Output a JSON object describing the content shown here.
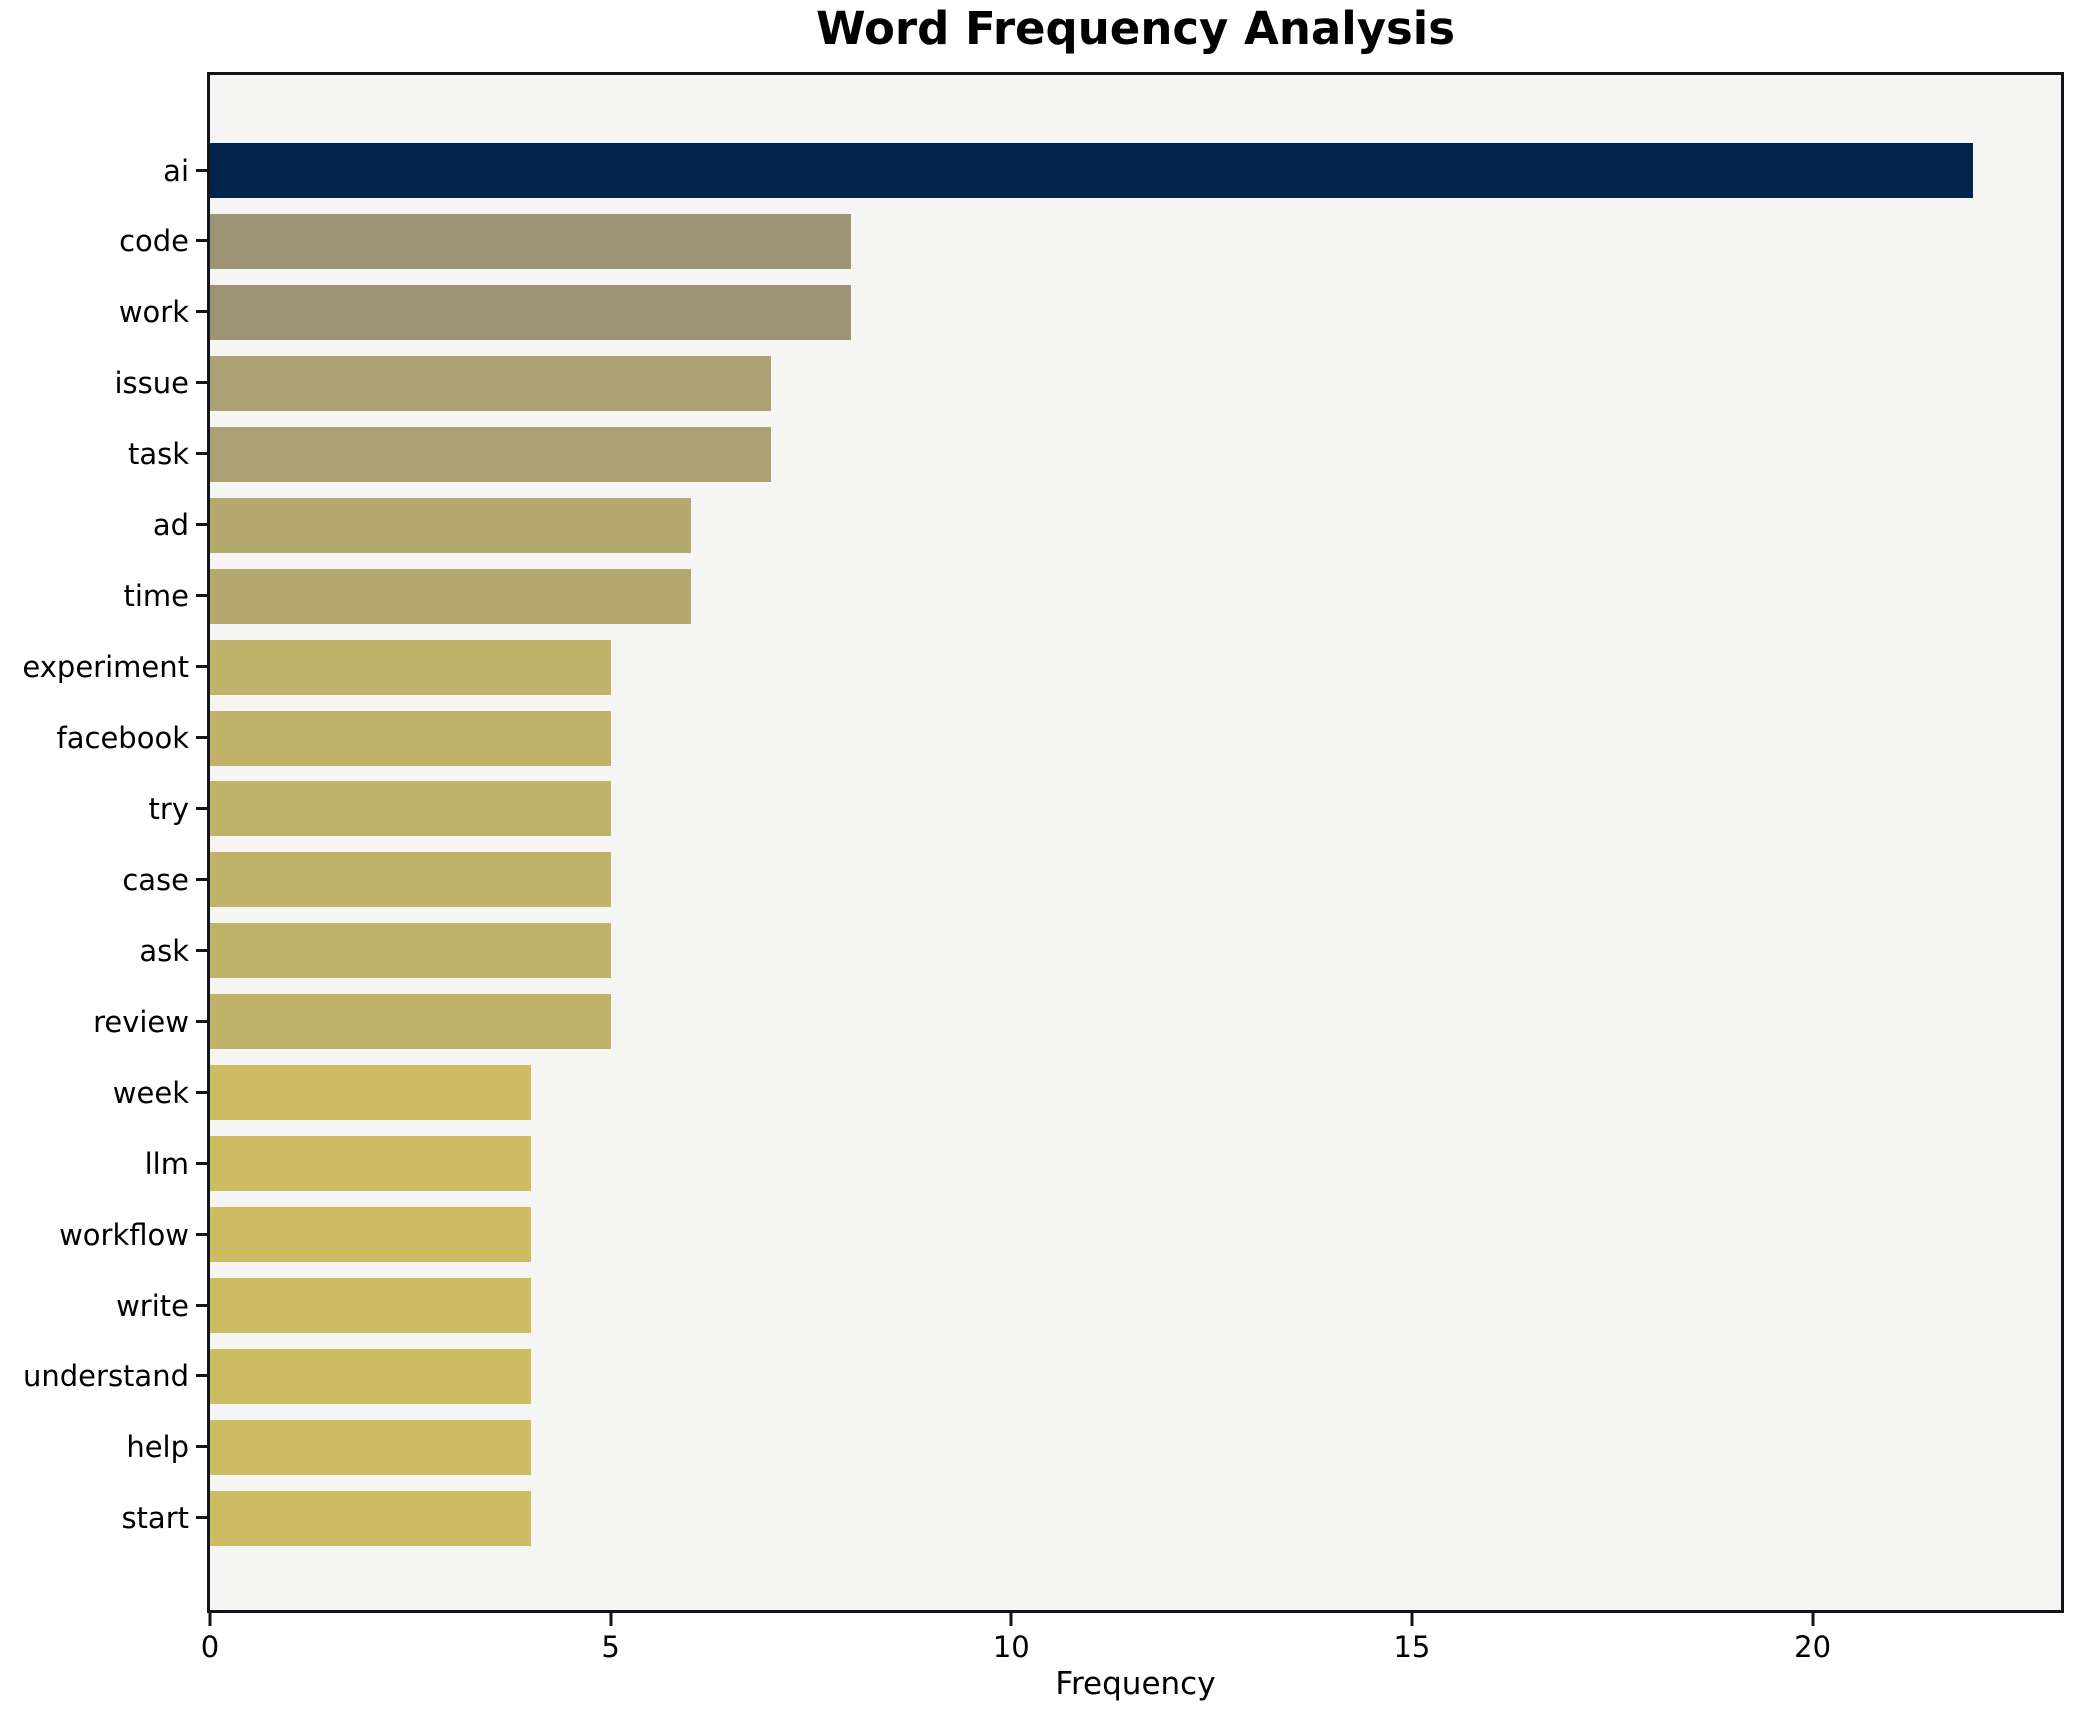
{
  "title": "Word Frequency Analysis",
  "chart_data": {
    "type": "bar",
    "orientation": "horizontal",
    "title": "Word Frequency Analysis",
    "xlabel": "Frequency",
    "ylabel": "",
    "grid": false,
    "legend": "none",
    "xlim": [
      0,
      23.1
    ],
    "x_ticks": [
      0,
      5,
      10,
      15,
      20
    ],
    "categories": [
      "ai",
      "code",
      "work",
      "issue",
      "task",
      "ad",
      "time",
      "experiment",
      "facebook",
      "try",
      "case",
      "ask",
      "review",
      "week",
      "llm",
      "workflow",
      "write",
      "understand",
      "help",
      "start"
    ],
    "values": [
      22,
      8,
      8,
      7,
      7,
      6,
      6,
      5,
      5,
      5,
      5,
      5,
      5,
      4,
      4,
      4,
      4,
      4,
      4,
      4
    ],
    "bar_colors": [
      "#02234c",
      "#9c9474",
      "#9c9474",
      "#aba173",
      "#aba173",
      "#b4aa6e",
      "#b4aa6e",
      "#c0b369",
      "#c0b369",
      "#c0b369",
      "#c0b369",
      "#c0b369",
      "#c0b369",
      "#ccbd62",
      "#ccbd62",
      "#ccbd62",
      "#ccbd62",
      "#ccbd62",
      "#ccbd62",
      "#ccbd62"
    ]
  },
  "colors": {
    "figure_bg": "#ffffff",
    "axes_bg": "#f5f5f4",
    "spine": "#13141a",
    "text": "#000000",
    "max_bar": "#02234c",
    "min_bar": "#ccbd62"
  }
}
